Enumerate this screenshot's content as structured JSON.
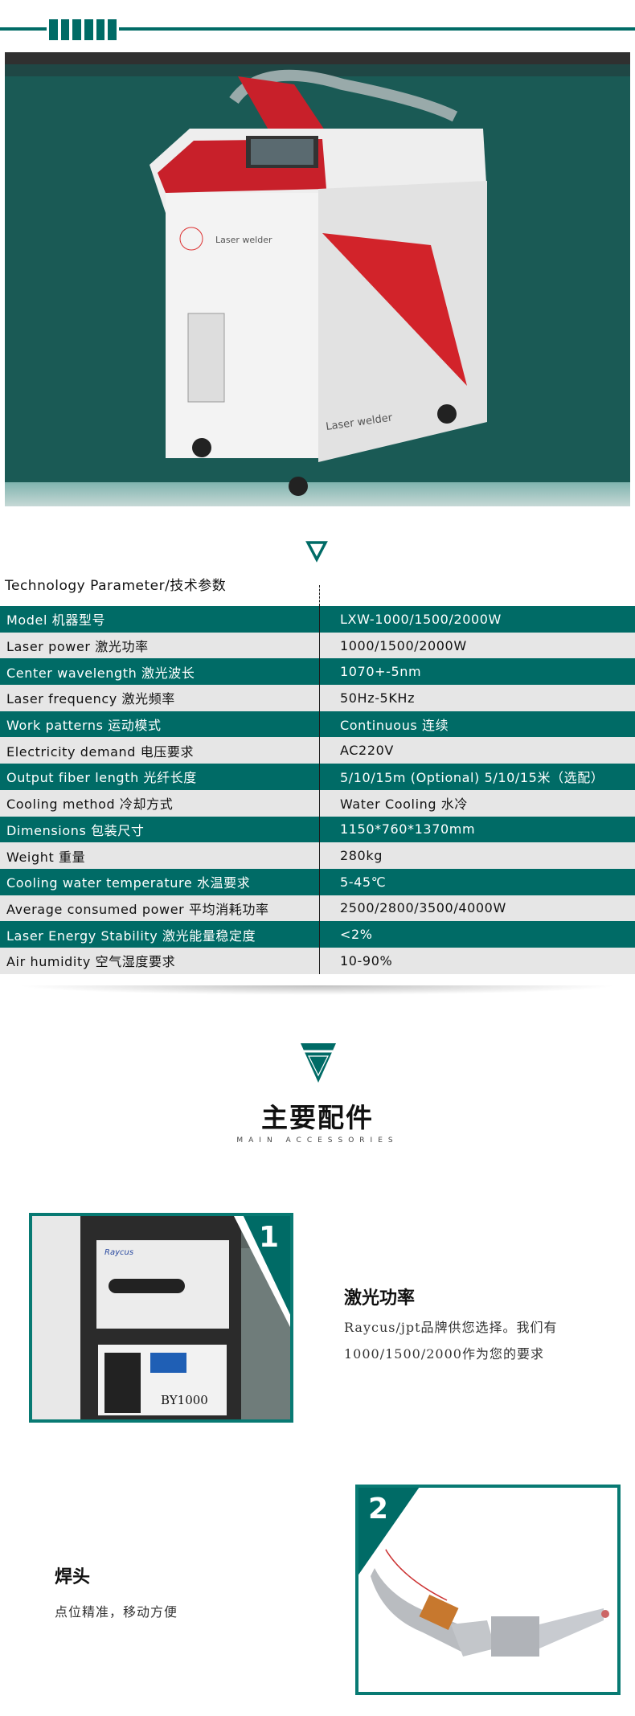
{
  "colors": {
    "accent": "#006b66",
    "row_light": "#e6e6e6"
  },
  "hero": {
    "brand_text_1": "Laser welder",
    "brand_text_2": "Laser welder"
  },
  "tech": {
    "title": "Technology Parameter/技术参数",
    "rows": [
      {
        "label": "Model 机器型号",
        "value": "LXW-1000/1500/2000W"
      },
      {
        "label": "Laser power 激光功率",
        "value": "1000/1500/2000W"
      },
      {
        "label": "Center wavelength 激光波长",
        "value": "1070+-5nm"
      },
      {
        "label": "Laser frequency 激光频率",
        "value": "50Hz-5KHz"
      },
      {
        "label": "Work patterns 运动模式",
        "value": "Continuous 连续"
      },
      {
        "label": "Electricity demand 电压要求",
        "value": "AC220V"
      },
      {
        "label": "Output fiber length 光纤长度",
        "value": "5/10/15m (Optional) 5/10/15米（选配）"
      },
      {
        "label": "Cooling method 冷却方式",
        "value": "Water Cooling 水冷"
      },
      {
        "label": "Dimensions 包装尺寸",
        "value": "1150*760*1370mm"
      },
      {
        "label": "Weight 重量",
        "value": "280kg"
      },
      {
        "label": "Cooling water temperature 水温要求",
        "value": "5-45℃"
      },
      {
        "label": "Average consumed power 平均消耗功率",
        "value": "2500/2800/3500/4000W"
      },
      {
        "label": "Laser Energy Stability 激光能量稳定度",
        "value": "<2%"
      },
      {
        "label": "Air humidity 空气湿度要求",
        "value": "10-90%"
      }
    ]
  },
  "accessories": {
    "title": "主要配件",
    "subtitle": "MAIN ACCESSORIES",
    "items": [
      {
        "number": "1",
        "title": "激光功率",
        "line1": "Raycus/jpt品牌供您选择。我们有",
        "line2": "1000/1500/2000作为您的要求",
        "photo_text_1": "Raycus",
        "photo_text_2": "BY1000"
      },
      {
        "number": "2",
        "title": "焊头",
        "line1": "点位精准，移动方便"
      }
    ]
  }
}
